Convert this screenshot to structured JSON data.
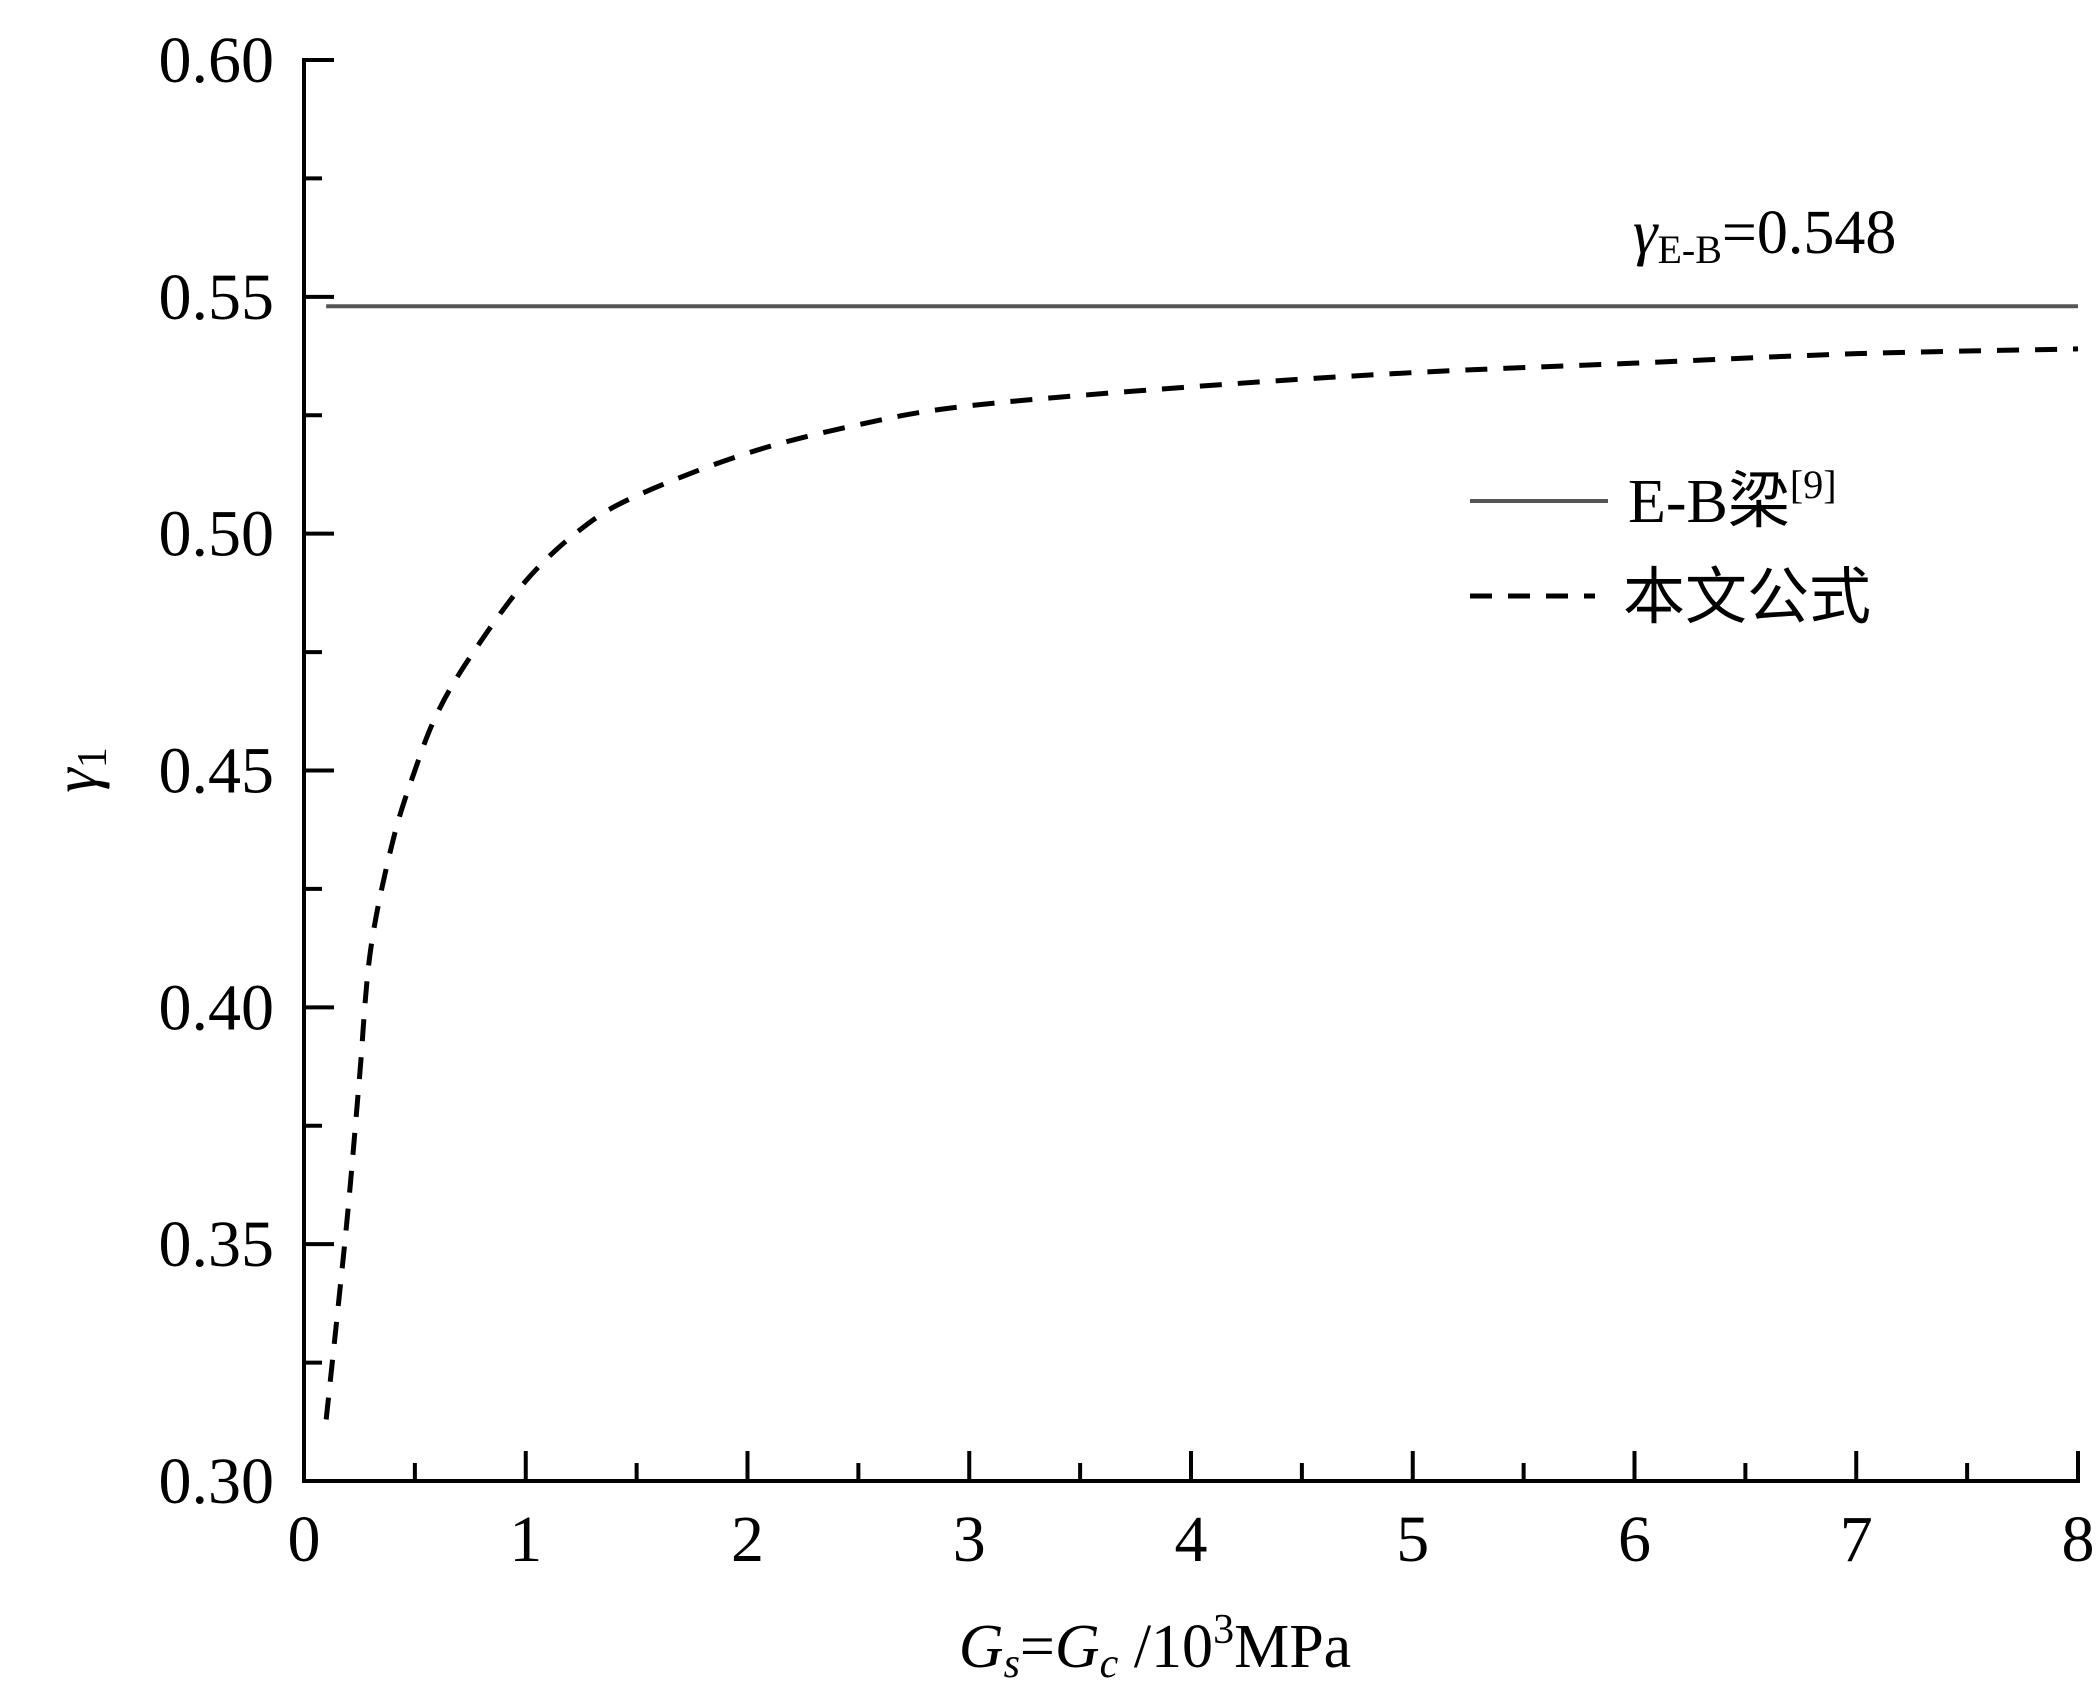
{
  "chart_data": {
    "type": "line",
    "title": "",
    "xlabel": {
      "main1": "G",
      "sub1": "s",
      "eq": "=",
      "main2": "G",
      "sub2": "c",
      "rest": " /10",
      "sup": "3",
      "unit": "MPa"
    },
    "ylabel": {
      "main": "γ",
      "sub": "1"
    },
    "xlim": [
      0,
      8
    ],
    "ylim": [
      0.3,
      0.6
    ],
    "x_ticks": [
      "0",
      "1",
      "2",
      "3",
      "4",
      "5",
      "6",
      "7",
      "8"
    ],
    "y_ticks": [
      "0.30",
      "0.35",
      "0.40",
      "0.45",
      "0.50",
      "0.55",
      "0.60"
    ],
    "grid": false,
    "legend_position": "right",
    "annotation": {
      "main": "γ",
      "sub": "E-B",
      "value": "=0.548"
    },
    "series": [
      {
        "name": "E-B梁",
        "name_sup": "[9]",
        "style": "solid",
        "color": "#555555",
        "x": [
          0.1,
          8
        ],
        "y": [
          0.548,
          0.548
        ]
      },
      {
        "name": "本文公式",
        "style": "dashed",
        "color": "#000000",
        "x": [
          0.1,
          0.15,
          0.2,
          0.25,
          0.3,
          0.4,
          0.5,
          0.6,
          0.75,
          1.0,
          1.25,
          1.5,
          2.0,
          2.5,
          3.0,
          4.0,
          5.0,
          6.0,
          7.0,
          8.0
        ],
        "y": [
          0.313,
          0.335,
          0.358,
          0.385,
          0.412,
          0.435,
          0.45,
          0.462,
          0.474,
          0.49,
          0.501,
          0.508,
          0.517,
          0.523,
          0.527,
          0.531,
          0.534,
          0.536,
          0.538,
          0.539
        ]
      }
    ]
  }
}
